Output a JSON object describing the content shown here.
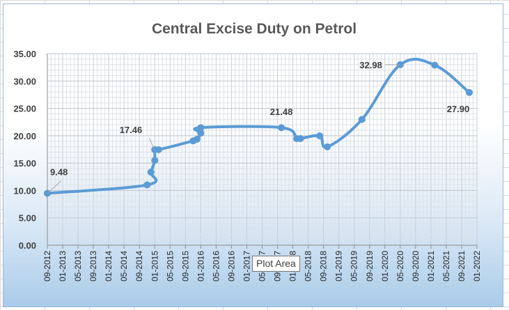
{
  "chart_data": {
    "type": "line",
    "title": "Central Excise Duty on Petrol",
    "ylim": [
      0,
      35
    ],
    "yticks": [
      "0.00",
      "5.00",
      "10.00",
      "15.00",
      "20.00",
      "25.00",
      "30.00",
      "35.00"
    ],
    "xticks": [
      "09-2012",
      "01-2013",
      "05-2013",
      "09-2013",
      "01-2014",
      "05-2014",
      "09-2014",
      "01-2015",
      "05-2015",
      "09-2015",
      "01-2016",
      "05-2016",
      "09-2016",
      "01-2017",
      "05-2017",
      "09-2017",
      "01-2018",
      "05-2018",
      "09-2018",
      "01-2019",
      "05-2019",
      "09-2019",
      "01-2020",
      "05-2020",
      "09-2020",
      "01-2021",
      "05-2021",
      "09-2021",
      "01-2022"
    ],
    "grid": true,
    "series": [
      {
        "color": "#5b9bd5",
        "points": [
          {
            "x": "2012-09",
            "y": 9.48
          },
          {
            "x": "2014-11",
            "y": 11.02
          },
          {
            "x": "2014-12",
            "y": 13.34
          },
          {
            "x": "2015-01",
            "y": 15.5
          },
          {
            "x": "2015-01",
            "y": 17.46
          },
          {
            "x": "2015-02",
            "y": 17.46
          },
          {
            "x": "2015-11",
            "y": 19.06
          },
          {
            "x": "2015-12",
            "y": 19.36
          },
          {
            "x": "2016-01",
            "y": 20.48
          },
          {
            "x": "2016-01",
            "y": 21.48
          },
          {
            "x": "2017-10",
            "y": 21.48
          },
          {
            "x": "2018-02",
            "y": 19.48
          },
          {
            "x": "2018-03",
            "y": 19.48
          },
          {
            "x": "2018-08",
            "y": 19.98
          },
          {
            "x": "2018-10",
            "y": 17.98
          },
          {
            "x": "2019-07",
            "y": 22.98
          },
          {
            "x": "2020-05",
            "y": 32.98
          },
          {
            "x": "2021-02",
            "y": 32.9
          },
          {
            "x": "2021-11",
            "y": 27.9
          }
        ]
      }
    ],
    "data_labels": [
      {
        "text": "9.48",
        "point_index": 0,
        "position": "above-right"
      },
      {
        "text": "17.46",
        "point_index": 4,
        "position": "above-left"
      },
      {
        "text": "21.48",
        "point_index": 10,
        "position": "above"
      },
      {
        "text": "32.98",
        "point_index": 16,
        "position": "left"
      },
      {
        "text": "27.90",
        "point_index": 18,
        "position": "below"
      }
    ]
  },
  "tooltip": {
    "text": "Plot Area"
  }
}
